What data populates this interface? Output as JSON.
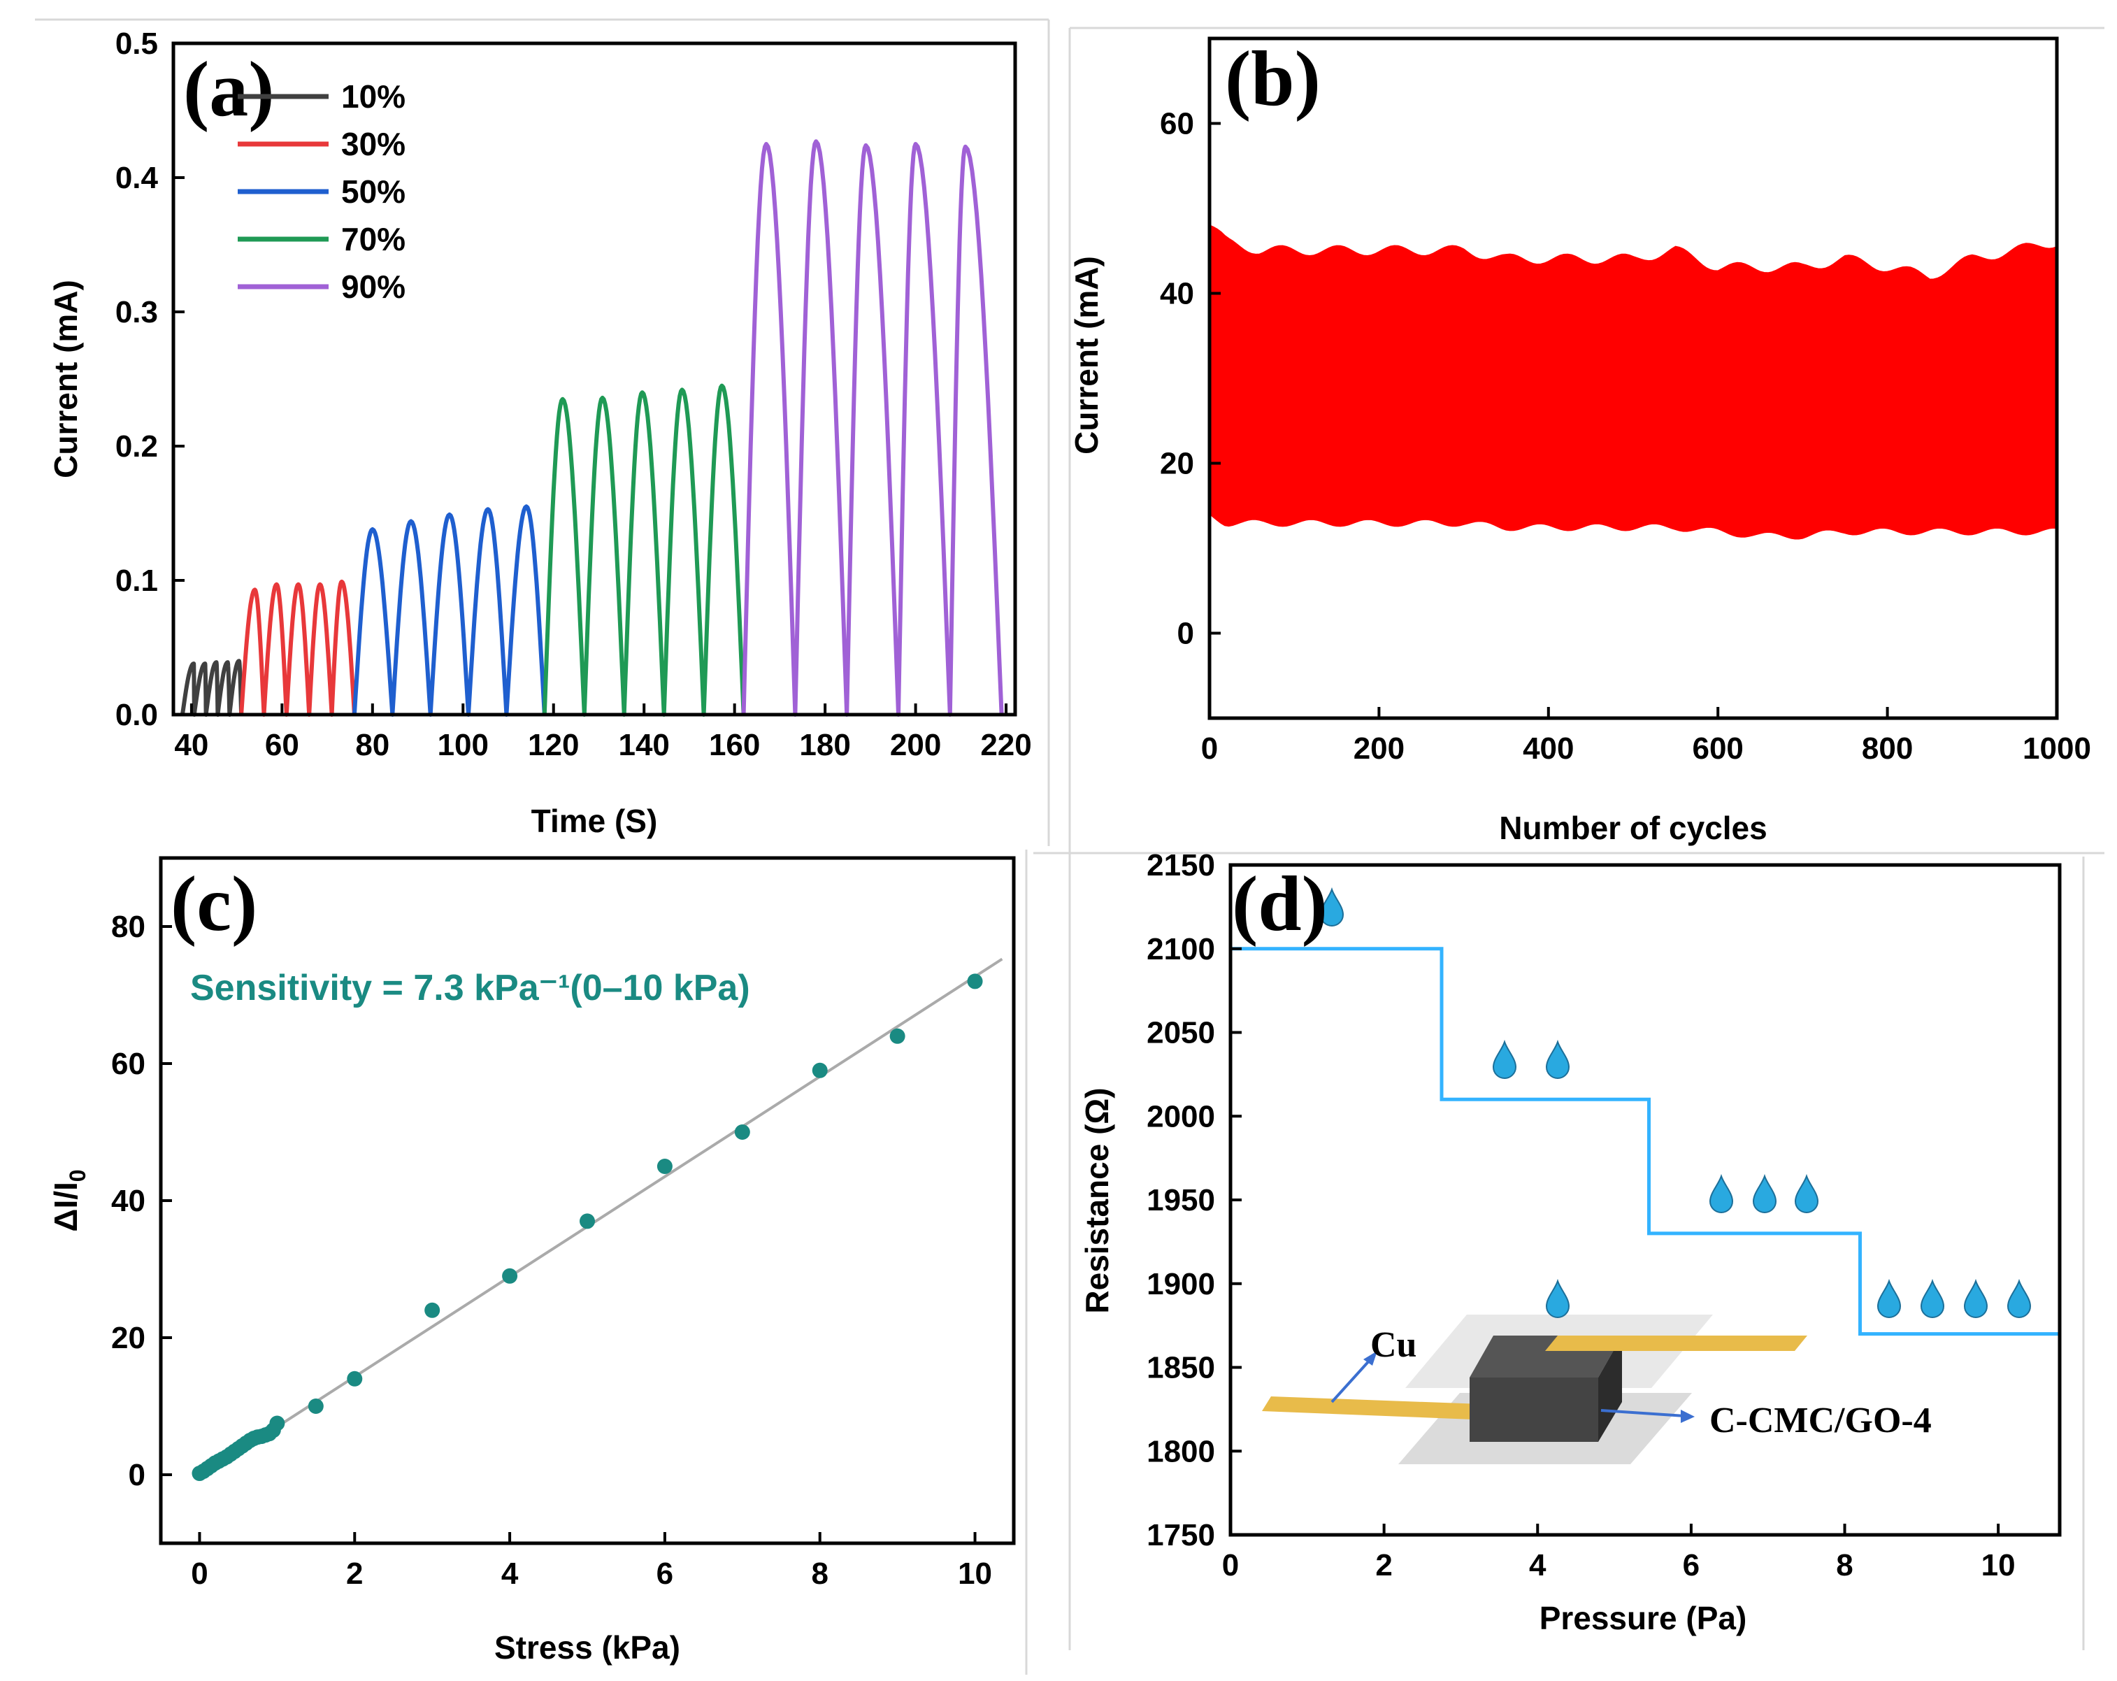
{
  "figure": {
    "caption_visible": false
  },
  "chart_data": [
    {
      "panel": "(a)",
      "type": "line",
      "xlabel": "Time (S)",
      "ylabel": "Current (mA)",
      "xlim": [
        36,
        222
      ],
      "ylim": [
        0.0,
        0.5
      ],
      "xticks": [
        40,
        60,
        80,
        100,
        120,
        140,
        160,
        180,
        200,
        220
      ],
      "yticks": [
        0.0,
        0.1,
        0.2,
        0.3,
        0.4,
        0.5
      ],
      "ytick_labels": [
        "0.0",
        "0.1",
        "0.2",
        "0.3",
        "0.4",
        "0.5"
      ],
      "legend_position": "top-left",
      "series": [
        {
          "name": "10%",
          "color": "#404040",
          "t_start": 38,
          "t_end": 51,
          "peak_times": [
            40.5,
            43,
            45.5,
            48,
            50.5
          ],
          "peaks": [
            0.038,
            0.038,
            0.039,
            0.039,
            0.04
          ]
        },
        {
          "name": "30%",
          "color": "#e8383a",
          "t_start": 51,
          "t_end": 76,
          "peak_times": [
            54,
            58.8,
            63.6,
            68.4,
            73.2
          ],
          "peaks": [
            0.093,
            0.097,
            0.097,
            0.097,
            0.099
          ]
        },
        {
          "name": "50%",
          "color": "#1f5fcf",
          "t_start": 76,
          "t_end": 118,
          "peak_times": [
            80,
            88.5,
            97,
            105.5,
            114
          ],
          "peaks": [
            0.138,
            0.144,
            0.149,
            0.153,
            0.155
          ]
        },
        {
          "name": "70%",
          "color": "#1f9a55",
          "t_start": 118,
          "t_end": 162,
          "peak_times": [
            122,
            130.8,
            139.6,
            148.4,
            157.2
          ],
          "peaks": [
            0.235,
            0.236,
            0.24,
            0.242,
            0.245
          ]
        },
        {
          "name": "90%",
          "color": "#a061d6",
          "t_start": 162,
          "t_end": 219,
          "peak_times": [
            167,
            178,
            189,
            200,
            211
          ],
          "peaks": [
            0.425,
            0.427,
            0.424,
            0.425,
            0.423
          ]
        }
      ]
    },
    {
      "panel": "(b)",
      "type": "area",
      "xlabel": "Number of cycles",
      "ylabel": "Current (mA)",
      "xlim": [
        0,
        1000
      ],
      "ylim": [
        -10,
        70
      ],
      "xticks": [
        0,
        200,
        400,
        600,
        800,
        1000
      ],
      "yticks": [
        0,
        20,
        40,
        60
      ],
      "color": "#ff0000",
      "upper_envelope": {
        "x": [
          0,
          20,
          60,
          100,
          200,
          300,
          350,
          400,
          500,
          550,
          600,
          650,
          700,
          750,
          800,
          850,
          900,
          950,
          1000
        ],
        "y": [
          48,
          46,
          45,
          45,
          45,
          45,
          44,
          44,
          44,
          45,
          43,
          43,
          43,
          44,
          43,
          42,
          44,
          45,
          46
        ]
      },
      "lower_envelope": {
        "x": [
          0,
          20,
          60,
          100,
          200,
          300,
          350,
          400,
          500,
          550,
          600,
          650,
          700,
          750,
          800,
          850,
          900,
          950,
          1000
        ],
        "y": [
          14,
          13,
          13,
          13,
          13,
          13,
          12.5,
          12.5,
          12.5,
          12.5,
          12,
          11.5,
          11.5,
          12,
          12,
          12,
          12,
          12,
          12
        ]
      }
    },
    {
      "panel": "(c)",
      "type": "scatter",
      "xlabel": "Stress (kPa)",
      "ylabel_main": "ΔI/I",
      "ylabel_sub": "0",
      "xlim": [
        -0.5,
        10.5
      ],
      "ylim": [
        -10,
        90
      ],
      "xticks": [
        0,
        2,
        4,
        6,
        8,
        10
      ],
      "yticks": [
        0,
        20,
        40,
        60,
        80
      ],
      "annotation": "Sensitivity = 7.3 kPa⁻¹(0–10 kPa)",
      "annotation_color": "#1a8a82",
      "point_color": "#1a8a82",
      "fit_color": "#aaaaaa",
      "fit_line": {
        "slope": 7.3,
        "intercept": -0.3,
        "x_range": [
          0,
          10.35
        ]
      },
      "x": [
        0.0,
        0.05,
        0.1,
        0.15,
        0.2,
        0.25,
        0.3,
        0.35,
        0.4,
        0.45,
        0.5,
        0.55,
        0.6,
        0.65,
        0.7,
        0.75,
        0.8,
        0.85,
        0.9,
        0.95,
        1.0,
        1.5,
        2,
        3,
        4,
        5,
        6,
        7,
        8,
        9,
        10
      ],
      "y": [
        0.2,
        0.5,
        0.9,
        1.3,
        1.7,
        2.0,
        2.3,
        2.6,
        3.0,
        3.4,
        3.8,
        4.2,
        4.6,
        5.0,
        5.3,
        5.5,
        5.6,
        5.8,
        6.0,
        6.5,
        7.5,
        10,
        14,
        24,
        29,
        37,
        45,
        50,
        59,
        64,
        72
      ]
    },
    {
      "panel": "(d)",
      "type": "line",
      "xlabel": "Pressure (Pa)",
      "ylabel": "Resistance (Ω)",
      "xlim": [
        0,
        10.8
      ],
      "ylim": [
        1750,
        2150
      ],
      "xticks": [
        0,
        2,
        4,
        6,
        8,
        10
      ],
      "yticks": [
        1750,
        1800,
        1850,
        1900,
        1950,
        2000,
        2050,
        2100,
        2150
      ],
      "color": "#33b3ff",
      "step_x": [
        0,
        2.75,
        2.75,
        5.45,
        5.45,
        8.2,
        8.2,
        10.8
      ],
      "step_y": [
        2100,
        2100,
        2010,
        2010,
        1930,
        1930,
        1870,
        1870
      ],
      "inset_labels": {
        "electrode": "Cu",
        "material": "C-CMC/GO-4"
      },
      "drop_color": "#29a9e0"
    }
  ]
}
